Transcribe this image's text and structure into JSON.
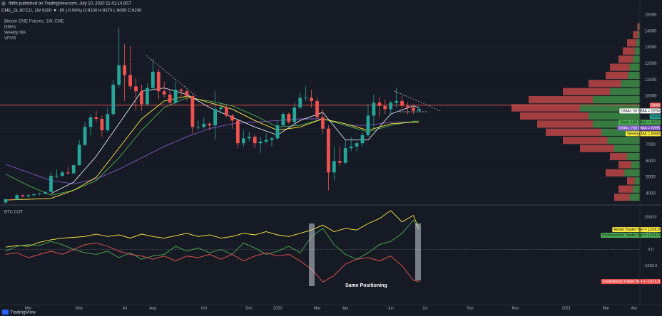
{
  "header": {
    "publisher": "fibfib published on TradingView.com, July 10, 2020 11:41:14 BST",
    "symbol_line": "CME_DL:BTC1!, 1W  9200 ▼ -55 (-0.59%) O:9100 H:9370 L:9005 C:9200"
  },
  "footer": "TradingView",
  "chart_data": [
    {
      "type": "candlestick",
      "title": "Bitcoin CME Futures, 1W, CME",
      "indicators": [
        "DMAs",
        "Weekly MA",
        "VPVR"
      ],
      "xlim": [
        -1,
        112
      ],
      "xticks": [
        {
          "value": 4,
          "label": "Mar"
        },
        {
          "value": 13,
          "label": "May"
        },
        {
          "value": 21,
          "label": "Jul"
        },
        {
          "value": 26,
          "label": "Aug"
        },
        {
          "value": 35,
          "label": "Oct"
        },
        {
          "value": 43,
          "label": "Dec"
        },
        {
          "value": 48,
          "label": "2020"
        },
        {
          "value": 55,
          "label": "Mar"
        },
        {
          "value": 60,
          "label": "Apr"
        },
        {
          "value": 68,
          "label": "Jun"
        },
        {
          "value": 74,
          "label": "Jul"
        },
        {
          "value": 82,
          "label": "Sep"
        },
        {
          "value": 90,
          "label": "Nov"
        },
        {
          "value": 99,
          "label": "2021"
        },
        {
          "value": 106,
          "label": "Mar"
        },
        {
          "value": 111,
          "label": "Apr"
        }
      ],
      "ylim": [
        3430,
        15260
      ],
      "yticks": [
        4000,
        5000,
        6000,
        7000,
        8000,
        9000,
        10000,
        11000,
        12000,
        13000,
        14000,
        15000
      ],
      "grid": true,
      "up_color": "#26a69a",
      "down_color": "#ef5350",
      "open": [
        3450,
        3650,
        3620,
        3900,
        3840,
        3900,
        3960,
        3990,
        4100,
        5100,
        5100,
        5300,
        5250,
        5750,
        7000,
        8100,
        8700,
        8600,
        7900,
        8900,
        10700,
        11900,
        11300,
        10600,
        10300,
        9500,
        10500,
        11500,
        10300,
        10100,
        9600,
        10400,
        10300,
        10000,
        8100,
        8100,
        8300,
        8200,
        9200,
        9300,
        8800,
        8500,
        7100,
        7400,
        7500,
        7100,
        7200,
        7300,
        7400,
        8200,
        8900,
        8400,
        9300,
        9900,
        9900,
        9700,
        8700,
        8000,
        5300,
        6000,
        5900,
        6800,
        6900,
        7100,
        7600,
        8800,
        9600,
        9400,
        9200,
        9600,
        9700,
        9400,
        9300,
        9100
      ],
      "high": [
        3700,
        3700,
        4000,
        3950,
        3950,
        4000,
        4050,
        4150,
        5300,
        5500,
        5400,
        5650,
        5800,
        7300,
        8400,
        8900,
        9100,
        8800,
        9300,
        11000,
        14200,
        13200,
        13100,
        11100,
        10700,
        10800,
        12300,
        11700,
        10900,
        10400,
        10900,
        10500,
        10400,
        10100,
        8500,
        8700,
        8400,
        10300,
        9600,
        9400,
        8900,
        8600,
        7900,
        7800,
        7600,
        7500,
        7700,
        7500,
        8500,
        9000,
        9000,
        9600,
        10200,
        10600,
        10400,
        9900,
        9200,
        8200,
        6900,
        6900,
        7300,
        7500,
        7200,
        7800,
        9500,
        10100,
        9950,
        9800,
        9700,
        10500,
        10000,
        9600,
        9400,
        9370
      ],
      "low": [
        3400,
        3550,
        3600,
        3750,
        3750,
        3850,
        3900,
        3950,
        4100,
        4950,
        5050,
        5150,
        5200,
        5700,
        6900,
        7600,
        8400,
        7500,
        7800,
        8800,
        10500,
        9700,
        10400,
        9100,
        9100,
        9400,
        10400,
        9800,
        9900,
        9400,
        9500,
        9900,
        9700,
        7700,
        7900,
        8000,
        7900,
        7300,
        8900,
        8700,
        8000,
        6800,
        6900,
        7200,
        6800,
        6500,
        7100,
        6900,
        7300,
        8100,
        8300,
        8300,
        9200,
        9700,
        9300,
        8600,
        7700,
        4200,
        4800,
        5700,
        5800,
        6600,
        6600,
        6900,
        7500,
        8000,
        8700,
        8900,
        8800,
        9300,
        9200,
        8900,
        8900,
        9005
      ],
      "close": [
        3650,
        3620,
        3900,
        3840,
        3900,
        3960,
        3990,
        4100,
        5100,
        5100,
        5300,
        5250,
        5750,
        7000,
        8100,
        8700,
        8600,
        7900,
        8900,
        10700,
        11900,
        11300,
        10600,
        10300,
        9500,
        10500,
        11500,
        10300,
        10100,
        9600,
        10400,
        10300,
        10000,
        8100,
        8100,
        8300,
        8200,
        9200,
        9300,
        8800,
        8500,
        7100,
        7400,
        7500,
        7100,
        7200,
        7300,
        7400,
        8200,
        8900,
        8400,
        9300,
        9900,
        9900,
        9700,
        8700,
        8000,
        5300,
        6000,
        5900,
        6800,
        6900,
        7100,
        7600,
        8800,
        9600,
        9400,
        9200,
        9600,
        9700,
        9400,
        9300,
        9100,
        9200
      ],
      "series": [
        {
          "color": "#7e57c2",
          "x": [
            0,
            4,
            8,
            12,
            16,
            20,
            24,
            28,
            32,
            36,
            40,
            44,
            48,
            52,
            56,
            60,
            64,
            68,
            72,
            73
          ],
          "values": [
            5800,
            5300,
            4800,
            4600,
            4900,
            5500,
            6200,
            6900,
            7500,
            8000,
            8300,
            8400,
            8500,
            8600,
            8600,
            8200,
            8200,
            8400,
            8400,
            8395
          ]
        },
        {
          "color": "#4caf50",
          "x": [
            0,
            4,
            8,
            12,
            16,
            20,
            24,
            28,
            32,
            36,
            40,
            44,
            48,
            52,
            56,
            60,
            64,
            68,
            72,
            73
          ],
          "values": [
            5200,
            4500,
            3900,
            4200,
            4800,
            6200,
            7900,
            9300,
            9900,
            9700,
            9400,
            8800,
            8100,
            8200,
            8600,
            8200,
            7800,
            8200,
            8450,
            8475
          ]
        },
        {
          "color": "#ffeb3b",
          "x": [
            0,
            4,
            8,
            12,
            16,
            20,
            24,
            28,
            32,
            36,
            40,
            44,
            48,
            52,
            56,
            60,
            64,
            68,
            72,
            73
          ],
          "values": [
            3600,
            3650,
            3700,
            4200,
            5000,
            6800,
            8600,
            9700,
            10000,
            9600,
            9200,
            8500,
            7900,
            8100,
            8600,
            8300,
            7900,
            8300,
            8400,
            8390
          ]
        },
        {
          "color": "#e0e3eb",
          "x": [
            8,
            12,
            16,
            20,
            24,
            28,
            32,
            36,
            40,
            44,
            48,
            52,
            56,
            60,
            64,
            68,
            72,
            73
          ],
          "values": [
            4000,
            4700,
            6300,
            8300,
            10300,
            10500,
            10100,
            9300,
            8700,
            8100,
            7600,
            8500,
            9000,
            7300,
            7300,
            8900,
            9400,
            9290
          ]
        }
      ],
      "price_line": {
        "value": 9440,
        "color": "#ef5350"
      },
      "price_tags": [
        {
          "value": 9290,
          "label": "DMAs 50 DMA = 9290",
          "color": "#ffffff",
          "text_color": "#131722"
        },
        {
          "value": 9200,
          "color": "#26a69a",
          "text_color": "#131722"
        },
        {
          "value": 8475,
          "label": "Short 100 DMA = 8475",
          "color": "#4caf50",
          "text_color": "#131722"
        },
        {
          "value": 8395,
          "label": "DMAs 200 DMA = 8395",
          "color": "#7e57c2",
          "text_color": "#ffffff"
        },
        {
          "value": 8390,
          "label": "Weekly MA = 8390",
          "color": "#ffeb3b",
          "text_color": "#131722"
        }
      ],
      "volume_profile": {
        "up_color": "rgba(76,175,80,0.65)",
        "down_color": "rgba(239,83,80,0.65)",
        "levels": [
          3750,
          4250,
          4750,
          5250,
          5750,
          6250,
          6750,
          7250,
          7750,
          8250,
          8750,
          9250,
          9750,
          10250,
          10750,
          11250,
          11750,
          12250,
          12750,
          13250,
          13750,
          14250
        ],
        "up": [
          12,
          8,
          6,
          18,
          10,
          15,
          30,
          38,
          45,
          55,
          60,
          70,
          55,
          35,
          22,
          14,
          12,
          8,
          6,
          4,
          2,
          1
        ],
        "down": [
          18,
          17,
          9,
          22,
          15,
          20,
          40,
          52,
          65,
          65,
          80,
          80,
          75,
          55,
          38,
          26,
          23,
          17,
          14,
          11,
          6,
          2
        ]
      }
    },
    {
      "type": "line",
      "title": "BTC COT",
      "annotation": "Same Positioning",
      "xlim": [
        -1,
        112
      ],
      "ylim": [
        -3390,
        2610
      ],
      "yticks": [
        {
          "value": 2000,
          "label": "2000.0"
        },
        {
          "value": 1000,
          "label": "1000.0"
        },
        {
          "value": 0,
          "label": "0.0"
        },
        {
          "value": -1000,
          "label": "-1000.0"
        },
        {
          "value": -2000,
          "label": "-2000.0"
        }
      ],
      "hlines": [
        0
      ],
      "x": [
        0,
        2,
        4,
        6,
        8,
        10,
        12,
        14,
        16,
        18,
        20,
        22,
        24,
        26,
        28,
        30,
        32,
        34,
        36,
        38,
        40,
        42,
        44,
        46,
        48,
        50,
        52,
        54,
        56,
        58,
        60,
        62,
        64,
        66,
        68,
        70,
        72,
        73
      ],
      "series": [
        {
          "name": "Retail Trader Net",
          "tag": "Retail Trader Net = 1226.0",
          "color": "#ffeb3b",
          "text_color": "#131722",
          "values": [
            150,
            250,
            200,
            450,
            600,
            700,
            750,
            800,
            950,
            800,
            900,
            700,
            950,
            800,
            700,
            850,
            1000,
            800,
            900,
            700,
            800,
            1000,
            900,
            1100,
            900,
            800,
            1000,
            1200,
            1500,
            1100,
            1300,
            1200,
            1600,
            1900,
            2400,
            1700,
            2100,
            1226
          ]
        },
        {
          "name": "Professional Trader Net",
          "tag": "Professional Trader Net = 1235.0",
          "color": "#4caf50",
          "text_color": "#131722",
          "values": [
            -100,
            200,
            300,
            250,
            500,
            300,
            0,
            -200,
            -300,
            -100,
            -500,
            -200,
            -600,
            -400,
            -300,
            200,
            -100,
            100,
            -200,
            0,
            -300,
            400,
            100,
            -300,
            -100,
            200,
            -200,
            800,
            1300,
            300,
            -300,
            -600,
            -200,
            300,
            500,
            1000,
            1800,
            1235
          ]
        },
        {
          "name": "Institutional Trader Net",
          "tag": "Institutional Trader Net = -1971.0",
          "color": "#ef5350",
          "text_color": "#ffffff",
          "values": [
            -300,
            -200,
            -500,
            -300,
            -100,
            -300,
            0,
            300,
            400,
            200,
            -100,
            -300,
            -400,
            -600,
            -400,
            -700,
            -400,
            -500,
            -300,
            -600,
            -300,
            -700,
            -400,
            -200,
            -400,
            -300,
            -700,
            -1200,
            -2000,
            -1600,
            -900,
            -600,
            -500,
            -700,
            -400,
            -1000,
            -1900,
            -1971
          ]
        }
      ]
    }
  ]
}
